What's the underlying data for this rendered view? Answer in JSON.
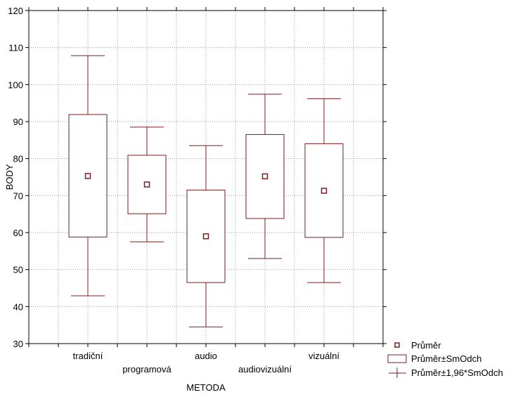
{
  "chart_data": {
    "type": "box",
    "title": "",
    "xlabel": "METODA",
    "ylabel": "BODY",
    "ylim": [
      30,
      120
    ],
    "yticks": [
      30,
      40,
      50,
      60,
      70,
      80,
      90,
      100,
      110,
      120
    ],
    "grid": true,
    "categories": [
      "tradiční",
      "programová",
      "audio",
      "audiovizuální",
      "vizuální"
    ],
    "label_rows": [
      0,
      1,
      0,
      1,
      0
    ],
    "series": [
      {
        "category": "tradiční",
        "mean": 75.3,
        "box_low": 58.8,
        "box_high": 91.9,
        "whisker_low": 42.9,
        "whisker_high": 107.8
      },
      {
        "category": "programová",
        "mean": 73.0,
        "box_low": 65.1,
        "box_high": 80.9,
        "whisker_low": 57.5,
        "whisker_high": 88.5
      },
      {
        "category": "audio",
        "mean": 59.0,
        "box_low": 46.5,
        "box_high": 71.5,
        "whisker_low": 34.5,
        "whisker_high": 83.5
      },
      {
        "category": "audiovizuální",
        "mean": 75.2,
        "box_low": 63.8,
        "box_high": 86.5,
        "whisker_low": 53.0,
        "whisker_high": 97.4
      },
      {
        "category": "vizuální",
        "mean": 71.3,
        "box_low": 58.7,
        "box_high": 84.0,
        "whisker_low": 46.5,
        "whisker_high": 96.2
      }
    ],
    "legend": {
      "position": "bottom-right",
      "entries": [
        "Průměr",
        "Průměr±SmOdch",
        "Průměr±1,96*SmOdch"
      ]
    },
    "colors": {
      "series": "#7a1f1f",
      "grid": "#9a9a9a",
      "axis": "#000000"
    }
  }
}
